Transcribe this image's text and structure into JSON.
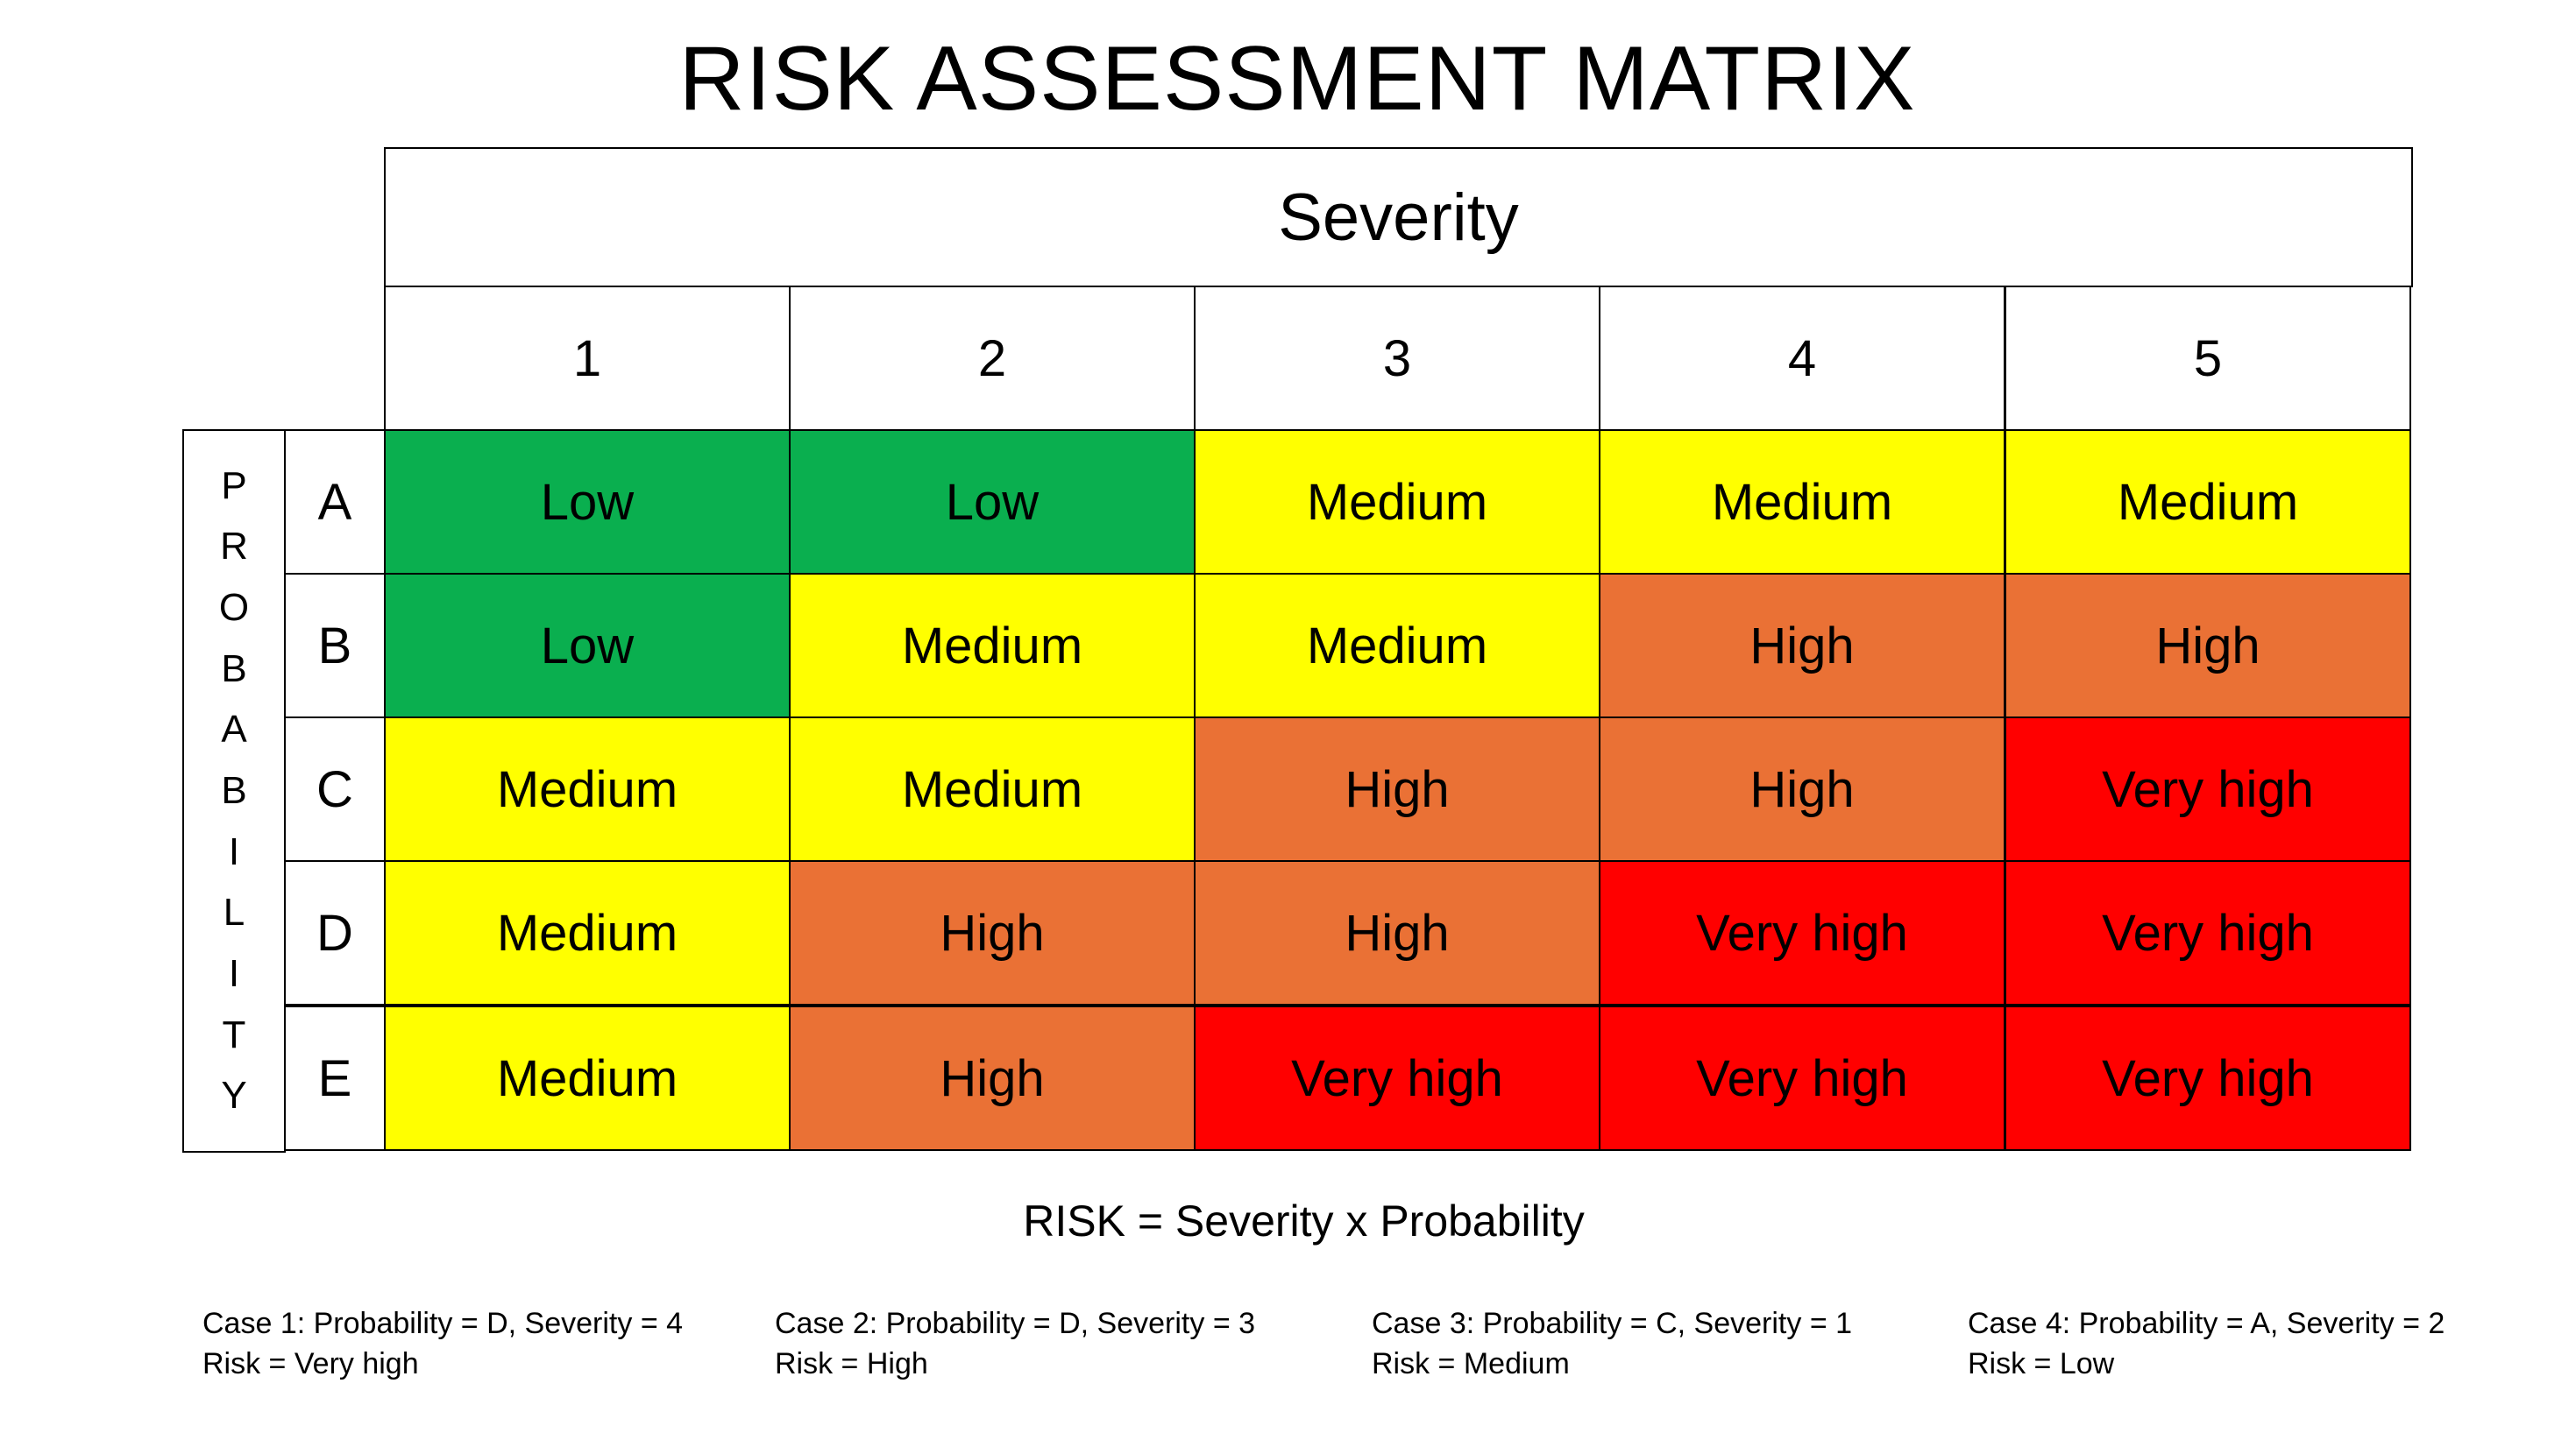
{
  "title": "RISK ASSESSMENT MATRIX",
  "severity_label": "Severity",
  "probability_letters": [
    "P",
    "R",
    "O",
    "B",
    "A",
    "B",
    "I",
    "L",
    "I",
    "T",
    "Y"
  ],
  "severity_levels": [
    "1",
    "2",
    "3",
    "4",
    "5"
  ],
  "rows": [
    {
      "label": "A",
      "cells": [
        "Low",
        "Low",
        "Medium",
        "Medium",
        "Medium"
      ]
    },
    {
      "label": "B",
      "cells": [
        "Low",
        "Medium",
        "Medium",
        "High",
        "High"
      ]
    },
    {
      "label": "C",
      "cells": [
        "Medium",
        "Medium",
        "High",
        "High",
        "Very high"
      ]
    },
    {
      "label": "D",
      "cells": [
        "Medium",
        "High",
        "High",
        "Very high",
        "Very high"
      ]
    },
    {
      "label": "E",
      "cells": [
        "Medium",
        "High",
        "Very high",
        "Very high",
        "Very high"
      ]
    }
  ],
  "colors": {
    "low": "#0aaf4f",
    "medium": "#ffff00",
    "high": "#ea7135",
    "very_high": "#ff0000"
  },
  "formula": "RISK = Severity x Probability",
  "cases": [
    {
      "line1": "Case 1: Probability = D, Severity = 4",
      "line2": "Risk = Very high"
    },
    {
      "line1": "Case 2: Probability = D, Severity = 3",
      "line2": "Risk = High"
    },
    {
      "line1": "Case 3: Probability = C, Severity = 1",
      "line2": "Risk = Medium"
    },
    {
      "line1": "Case 4: Probability = A, Severity = 2",
      "line2": "Risk = Low"
    }
  ]
}
